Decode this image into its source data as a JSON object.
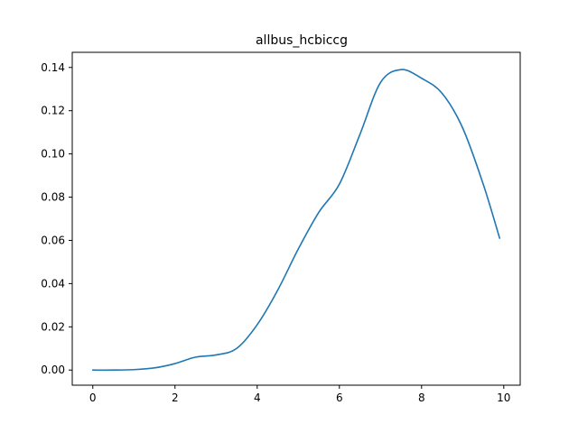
{
  "chart_data": {
    "type": "line",
    "title": "allbus_hcbiccg",
    "xlabel": "",
    "ylabel": "",
    "xlim": [
      -0.5,
      10.4
    ],
    "ylim": [
      -0.007,
      0.147
    ],
    "x_ticks": [
      0,
      2,
      4,
      6,
      8,
      10
    ],
    "x_tick_labels": [
      "0",
      "2",
      "4",
      "6",
      "8",
      "10"
    ],
    "y_ticks": [
      0.0,
      0.02,
      0.04,
      0.06,
      0.08,
      0.1,
      0.12,
      0.14
    ],
    "y_tick_labels": [
      "0.00",
      "0.02",
      "0.04",
      "0.06",
      "0.08",
      "0.10",
      "0.12",
      "0.14"
    ],
    "grid": false,
    "series": [
      {
        "color": "#1f77b4",
        "x": [
          0,
          0.5,
          1.0,
          1.5,
          2.0,
          2.5,
          3.0,
          3.5,
          4.0,
          4.5,
          5.0,
          5.5,
          6.0,
          6.5,
          7.0,
          7.5,
          8.0,
          8.5,
          9.0,
          9.5,
          9.9
        ],
        "y": [
          0.0,
          0.0,
          0.0002,
          0.001,
          0.003,
          0.006,
          0.007,
          0.01,
          0.021,
          0.037,
          0.056,
          0.073,
          0.086,
          0.109,
          0.133,
          0.139,
          0.135,
          0.128,
          0.112,
          0.086,
          0.061
        ]
      }
    ]
  }
}
